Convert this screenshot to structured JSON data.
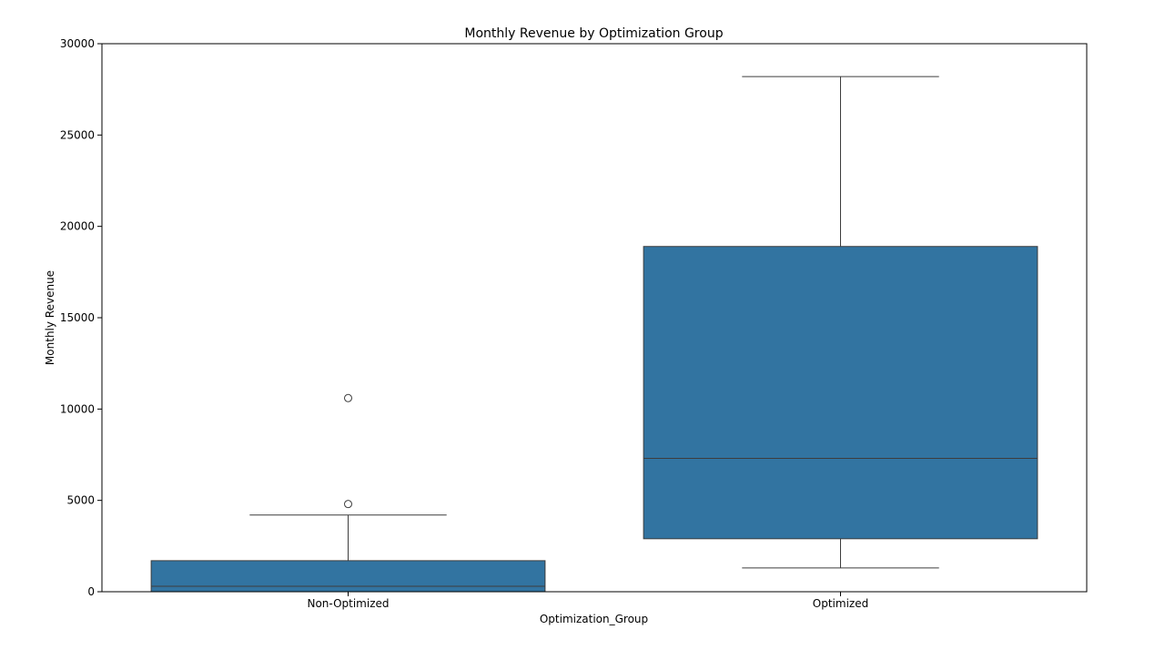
{
  "chart_data": {
    "type": "box",
    "title": "Monthly Revenue by Optimization Group",
    "xlabel": "Optimization_Group",
    "ylabel": "Monthly Revenue",
    "ylim": [
      0,
      30000
    ],
    "yticks": [
      0,
      5000,
      10000,
      15000,
      20000,
      25000,
      30000
    ],
    "categories": [
      "Non-Optimized",
      "Optimized"
    ],
    "boxes": [
      {
        "category": "Non-Optimized",
        "whisker_low": 0,
        "q1": 0,
        "median": 300,
        "q3": 1700,
        "whisker_high": 4200,
        "outliers": [
          4800,
          10600
        ]
      },
      {
        "category": "Optimized",
        "whisker_low": 1300,
        "q1": 2900,
        "median": 7300,
        "q3": 18900,
        "whisker_high": 28200,
        "outliers": []
      }
    ],
    "box_color": "#3274a1",
    "line_color": "#3d3d3d",
    "grid": false
  }
}
